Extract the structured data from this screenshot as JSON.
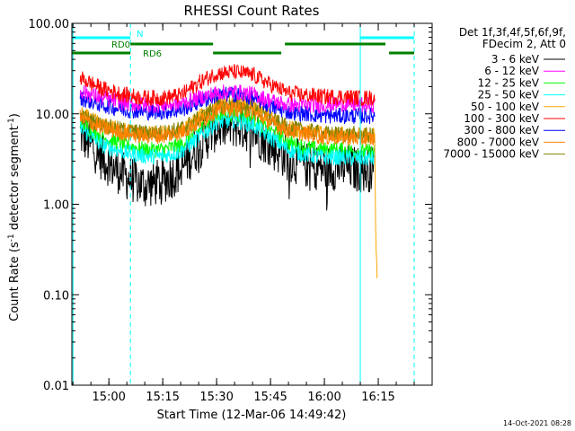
{
  "chart_data": {
    "type": "line",
    "title": "RHESSI Count Rates",
    "xlabel": "Start Time (12-Mar-06 14:49:42)",
    "ylabel": "Count Rate (s",
    "ylabel_sup": "-1",
    "ylabel_tail": " detector segment",
    "ylabel_sup2": "-1",
    "ylabel_close": ")",
    "y_scale": "log",
    "ylim": [
      0.01,
      100
    ],
    "xlim": [
      "14:49:42",
      "16:30:00"
    ],
    "grid": false,
    "legend_position": "top-right",
    "x_ticks": [
      "15:00",
      "15:15",
      "15:30",
      "15:45",
      "16:00",
      "16:15"
    ],
    "y_ticks": [
      "0.01",
      "0.10",
      "1.00",
      "10.00",
      "100.00"
    ],
    "legend_header": [
      "Det 1f,3f,4f,5f,6f,9f,",
      "FDecim 2, Att 0"
    ],
    "series": [
      {
        "name": "3 - 6 keV",
        "color": "#000000",
        "times": [
          "14:52",
          "14:55",
          "14:58",
          "15:01",
          "15:05",
          "15:10",
          "15:15",
          "15:20",
          "15:25",
          "15:30",
          "15:35",
          "15:40",
          "15:45",
          "15:50",
          "15:55",
          "16:00",
          "16:05",
          "16:10",
          "16:14"
        ],
        "values": [
          6.0,
          4.5,
          3.3,
          2.6,
          2.0,
          1.6,
          1.8,
          2.4,
          4.5,
          7.0,
          7.5,
          6.5,
          4.5,
          3.2,
          2.7,
          2.5,
          2.6,
          2.4,
          2.5
        ]
      },
      {
        "name": "6 - 12 keV",
        "color": "#ff00ff",
        "times": [
          "14:52",
          "14:58",
          "15:05",
          "15:10",
          "15:15",
          "15:20",
          "15:25",
          "15:30",
          "15:35",
          "15:40",
          "15:45",
          "15:50",
          "15:55",
          "16:00",
          "16:05",
          "16:10",
          "16:14"
        ],
        "values": [
          18.0,
          15.0,
          13.0,
          12.5,
          12.5,
          13.0,
          15.0,
          17.0,
          17.5,
          16.5,
          14.0,
          12.5,
          12.5,
          12.5,
          13.0,
          12.5,
          12.5
        ]
      },
      {
        "name": "12 - 25 keV",
        "color": "#00ff00",
        "times": [
          "14:52",
          "14:58",
          "15:05",
          "15:10",
          "15:15",
          "15:20",
          "15:25",
          "15:30",
          "15:35",
          "15:40",
          "15:45",
          "15:50",
          "15:55",
          "16:00",
          "16:05",
          "16:10",
          "16:14"
        ],
        "values": [
          8.0,
          5.5,
          4.5,
          4.0,
          4.0,
          4.5,
          6.5,
          9.5,
          10.0,
          9.0,
          6.5,
          4.8,
          4.2,
          4.0,
          4.0,
          3.8,
          3.8
        ]
      },
      {
        "name": "25 - 50 keV",
        "color": "#00ffff",
        "times": [
          "14:52",
          "14:58",
          "15:05",
          "15:10",
          "15:15",
          "15:20",
          "15:25",
          "15:30",
          "15:35",
          "15:40",
          "15:45",
          "15:50",
          "15:55",
          "16:00",
          "16:05",
          "16:10",
          "16:14"
        ],
        "values": [
          7.0,
          4.5,
          3.7,
          3.4,
          3.4,
          3.8,
          5.5,
          8.0,
          8.5,
          7.5,
          5.5,
          4.0,
          3.5,
          3.3,
          3.3,
          3.2,
          3.2
        ]
      },
      {
        "name": "50 - 100 keV",
        "color": "#ffa500",
        "times": [
          "14:52",
          "14:58",
          "15:05",
          "15:10",
          "15:15",
          "15:20",
          "15:25",
          "15:30",
          "15:35",
          "15:40",
          "15:45",
          "15:50",
          "15:55",
          "16:00",
          "16:05",
          "16:10",
          "16:14",
          "16:14.3",
          "16:14.8"
        ],
        "values": [
          10.0,
          7.5,
          6.5,
          6.0,
          6.0,
          6.5,
          9.0,
          13.0,
          14.0,
          12.5,
          9.0,
          7.0,
          6.5,
          6.0,
          6.0,
          5.8,
          5.8,
          0.5,
          0.1
        ]
      },
      {
        "name": "100 - 300 keV",
        "color": "#ff0000",
        "times": [
          "14:52",
          "14:58",
          "15:05",
          "15:10",
          "15:15",
          "15:20",
          "15:25",
          "15:30",
          "15:35",
          "15:40",
          "15:45",
          "15:50",
          "15:55",
          "16:00",
          "16:05",
          "16:10",
          "16:14"
        ],
        "values": [
          25.0,
          19.0,
          16.0,
          15.0,
          15.0,
          16.0,
          22.0,
          28.0,
          29.0,
          27.0,
          21.0,
          17.0,
          16.0,
          15.5,
          15.5,
          15.0,
          15.0
        ]
      },
      {
        "name": "300 - 800 keV",
        "color": "#0000ff",
        "times": [
          "14:52",
          "14:58",
          "15:05",
          "15:10",
          "15:15",
          "15:20",
          "15:25",
          "15:30",
          "15:35",
          "15:40",
          "15:45",
          "15:50",
          "15:55",
          "16:00",
          "16:05",
          "16:10",
          "16:14"
        ],
        "values": [
          15.0,
          12.5,
          11.0,
          10.5,
          10.5,
          11.0,
          13.5,
          16.0,
          16.5,
          15.0,
          12.0,
          10.5,
          10.0,
          9.5,
          9.5,
          9.5,
          9.5
        ]
      },
      {
        "name": "800 - 7000 keV",
        "color": "#ff8000",
        "times": [
          "14:52",
          "14:58",
          "15:05",
          "15:10",
          "15:15",
          "15:20",
          "15:25",
          "15:30",
          "15:35",
          "15:40",
          "15:45",
          "15:50",
          "15:55",
          "16:00",
          "16:05",
          "16:10",
          "16:14"
        ],
        "values": [
          9.0,
          7.0,
          6.0,
          5.7,
          5.7,
          6.2,
          8.0,
          11.0,
          11.5,
          10.5,
          8.0,
          6.5,
          6.0,
          5.5,
          5.5,
          5.3,
          5.3
        ]
      },
      {
        "name": "7000 - 15000 keV",
        "color": "#808000",
        "times": [
          "14:52",
          "14:58",
          "15:05",
          "15:10",
          "15:15",
          "15:20",
          "15:25",
          "15:30",
          "15:35",
          "15:40",
          "15:45",
          "15:50",
          "15:55",
          "16:00",
          "16:05",
          "16:10",
          "16:14"
        ],
        "values": [
          9.5,
          7.5,
          6.5,
          6.2,
          6.2,
          6.8,
          8.8,
          12.0,
          12.5,
          11.5,
          8.8,
          7.0,
          6.5,
          6.0,
          6.0,
          5.8,
          5.8
        ]
      }
    ],
    "flag_bars": [
      {
        "label": "N",
        "color": "#00ffff",
        "spans": [
          [
            "14:49:42",
            "15:06"
          ],
          [
            "16:10",
            "16:25"
          ]
        ]
      },
      {
        "label": "RD0",
        "color": "#008000",
        "spans": [
          [
            "15:06",
            "15:29"
          ],
          [
            "15:49",
            "16:17"
          ]
        ]
      },
      {
        "label": "RD6",
        "color": "#008000",
        "spans": [
          [
            "14:49:42",
            "15:06"
          ],
          [
            "15:29",
            "15:48"
          ],
          [
            "16:18",
            "16:25"
          ]
        ]
      }
    ],
    "vertical_markers": [
      {
        "time": "14:50",
        "style": "solid"
      },
      {
        "time": "15:06",
        "style": "dashed"
      },
      {
        "time": "16:10",
        "style": "solid"
      },
      {
        "time": "16:25",
        "style": "dashed"
      }
    ],
    "timestamp": "14-Oct-2021 08:28"
  }
}
